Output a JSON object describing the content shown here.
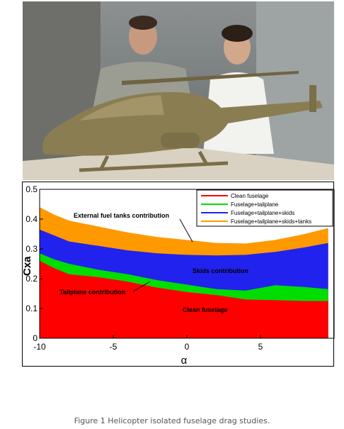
{
  "photo": {
    "subject": "helicopter-fuselage-model-with-two-researchers",
    "colors": {
      "model": "#8a7d52",
      "background": "#7d8283",
      "table": "#cfc6b4"
    }
  },
  "chart_data": {
    "type": "area",
    "title": "",
    "xlabel": "α",
    "ylabel": "Cxa",
    "xlim": [
      -10,
      10
    ],
    "ylim": [
      0,
      0.5
    ],
    "xticks": [
      -10,
      -5,
      0,
      5
    ],
    "yticks": [
      0,
      0.1,
      0.2,
      0.3,
      0.4,
      0.5
    ],
    "grid": false,
    "legend_position": "top-right",
    "x": [
      -10,
      -9,
      -8,
      -6,
      -4,
      -2,
      0,
      2,
      4,
      6,
      8,
      9.6
    ],
    "series": [
      {
        "name": "Clean fuselage",
        "color": "#ff0000",
        "values": [
          0.26,
          0.235,
          0.215,
          0.205,
          0.19,
          0.17,
          0.155,
          0.145,
          0.13,
          0.128,
          0.125,
          0.125
        ]
      },
      {
        "name": "Fuselage+tailplane",
        "color": "#00dd00",
        "values": [
          0.285,
          0.265,
          0.25,
          0.23,
          0.215,
          0.195,
          0.18,
          0.165,
          0.16,
          0.178,
          0.172,
          0.165
        ]
      },
      {
        "name": "Fuselage+tailplane+skids",
        "color": "#2222ee",
        "values": [
          0.365,
          0.345,
          0.325,
          0.31,
          0.295,
          0.285,
          0.28,
          0.278,
          0.28,
          0.29,
          0.305,
          0.32
        ]
      },
      {
        "name": "Fuselage+tailplane+skids+tanks",
        "color": "#ff9900",
        "values": [
          0.44,
          0.415,
          0.395,
          0.375,
          0.355,
          0.34,
          0.33,
          0.32,
          0.318,
          0.33,
          0.35,
          0.37
        ]
      }
    ],
    "annotations": [
      {
        "text": "External fuel tanks contribution"
      },
      {
        "text": "Skids contribution"
      },
      {
        "text": "Tailplane contribution"
      },
      {
        "text": "Clean fuselage"
      }
    ]
  },
  "caption": "Figure 1 Helicopter isolated fuselage drag studies."
}
